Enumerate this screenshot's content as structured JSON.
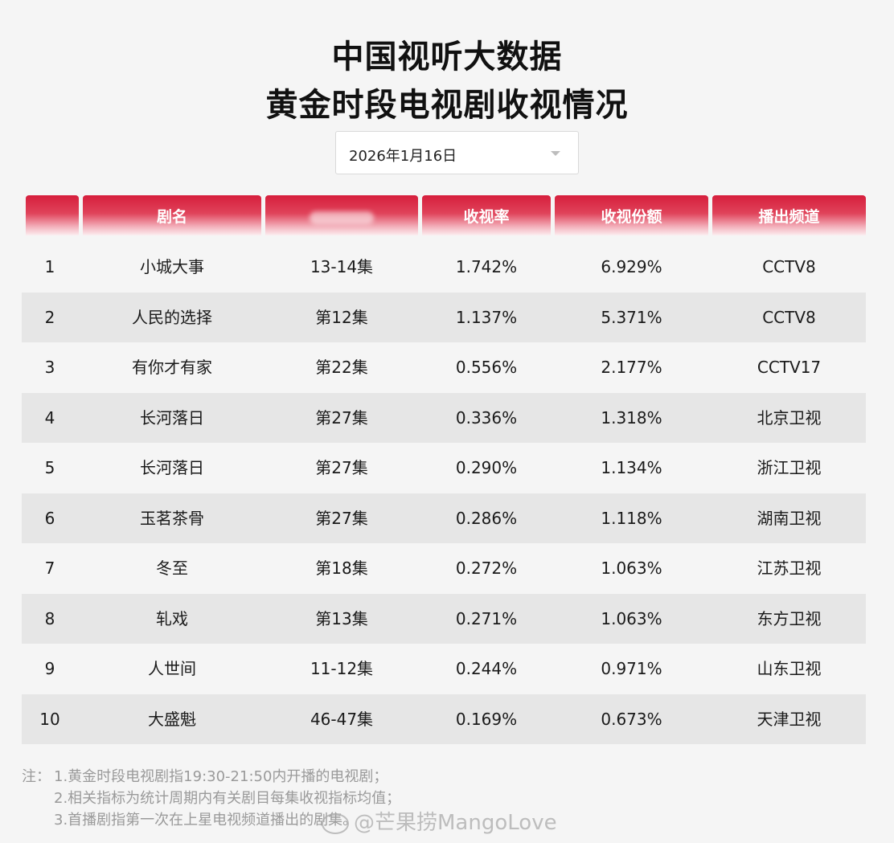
{
  "title_line1": "中国视听大数据",
  "title_line2": "黄金时段电视剧收视情况",
  "date_select": {
    "value": "2026年1月16日"
  },
  "columns": [
    "",
    "剧名",
    "",
    "收视率",
    "收视份额",
    "播出频道"
  ],
  "rows": [
    [
      "1",
      "小城大事",
      "13-14集",
      "1.742%",
      "6.929%",
      "CCTV8"
    ],
    [
      "2",
      "人民的选择",
      "第12集",
      "1.137%",
      "5.371%",
      "CCTV8"
    ],
    [
      "3",
      "有你才有家",
      "第22集",
      "0.556%",
      "2.177%",
      "CCTV17"
    ],
    [
      "4",
      "长河落日",
      "第27集",
      "0.336%",
      "1.318%",
      "北京卫视"
    ],
    [
      "5",
      "长河落日",
      "第27集",
      "0.290%",
      "1.134%",
      "浙江卫视"
    ],
    [
      "6",
      "玉茗茶骨",
      "第27集",
      "0.286%",
      "1.118%",
      "湖南卫视"
    ],
    [
      "7",
      "冬至",
      "第18集",
      "0.272%",
      "1.063%",
      "江苏卫视"
    ],
    [
      "8",
      "轧戏",
      "第13集",
      "0.271%",
      "1.063%",
      "东方卫视"
    ],
    [
      "9",
      "人世间",
      "11-12集",
      "0.244%",
      "0.971%",
      "山东卫视"
    ],
    [
      "10",
      "大盛魁",
      "46-47集",
      "0.169%",
      "0.673%",
      "天津卫视"
    ]
  ],
  "notes": {
    "label": "注：",
    "items": [
      "1.黄金时段电视剧指19:30-21:50内开播的电视剧；",
      "2.相关指标为统计周期内有关剧目每集收视指标均值；",
      "3.首播剧指第一次在上星电视频道播出的剧集。"
    ]
  },
  "watermark": "@芒果捞MangoLove",
  "colors": {
    "header_red": "#d61e3c",
    "stripe": "#e6e6e6",
    "background": "#f5f5f5"
  }
}
